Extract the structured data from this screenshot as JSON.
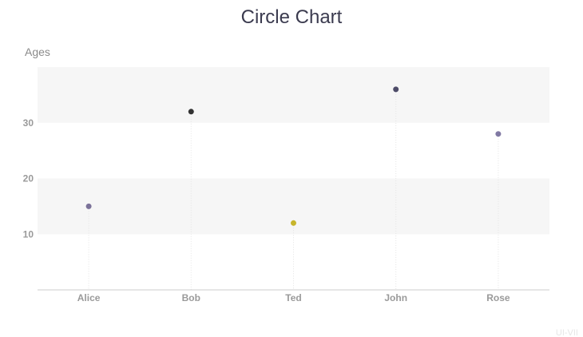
{
  "chart_data": {
    "type": "scatter",
    "title": "Circle Chart",
    "ylabel": "Ages",
    "xlabel": "",
    "categories": [
      "Alice",
      "Bob",
      "Ted",
      "John",
      "Rose"
    ],
    "values": [
      15,
      32,
      12,
      36,
      28
    ],
    "point_colors": [
      "#7b7299",
      "#333333",
      "#c7b52c",
      "#4d4b68",
      "#8079a3"
    ],
    "ylim": [
      0,
      40
    ],
    "yticks": [
      10,
      20,
      30
    ],
    "band_color": "#f6f6f6",
    "grid": false,
    "legend": "none"
  },
  "watermark": "UI-VII"
}
